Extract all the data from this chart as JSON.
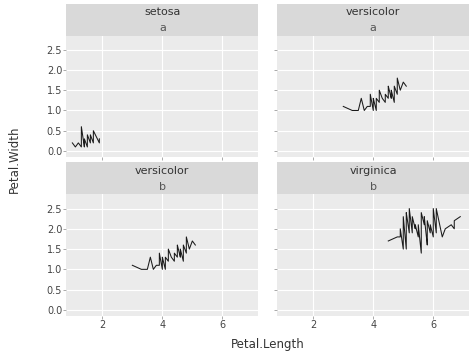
{
  "setosa_pl": [
    1.4,
    1.4,
    1.3,
    1.5,
    1.4,
    1.7,
    1.4,
    1.5,
    1.4,
    1.5,
    1.5,
    1.6,
    1.4,
    1.1,
    1.2,
    1.5,
    1.3,
    1.4,
    1.7,
    1.5,
    1.7,
    1.5,
    1.0,
    1.7,
    1.9,
    1.6,
    1.6,
    1.5,
    1.4,
    1.6,
    1.6,
    1.5,
    1.5,
    1.4,
    1.5,
    1.2,
    1.3,
    1.4,
    1.3,
    1.5,
    1.3,
    1.3,
    1.3,
    1.6,
    1.9,
    1.4,
    1.6,
    1.4,
    1.5,
    1.4
  ],
  "setosa_pw": [
    0.2,
    0.2,
    0.2,
    0.2,
    0.2,
    0.4,
    0.3,
    0.2,
    0.2,
    0.1,
    0.2,
    0.2,
    0.1,
    0.1,
    0.2,
    0.4,
    0.4,
    0.3,
    0.3,
    0.3,
    0.2,
    0.4,
    0.2,
    0.5,
    0.2,
    0.2,
    0.4,
    0.2,
    0.2,
    0.2,
    0.2,
    0.4,
    0.1,
    0.2,
    0.2,
    0.2,
    0.1,
    0.2,
    0.3,
    0.3,
    0.3,
    0.2,
    0.6,
    0.4,
    0.3,
    0.2,
    0.2,
    0.2,
    0.2,
    0.2
  ],
  "versicolor_pl": [
    4.7,
    4.5,
    4.9,
    4.0,
    4.6,
    4.5,
    4.7,
    3.3,
    4.6,
    3.9,
    3.5,
    4.2,
    4.0,
    4.7,
    3.6,
    4.4,
    4.5,
    4.1,
    4.5,
    3.9,
    4.8,
    4.0,
    4.9,
    4.7,
    4.3,
    4.4,
    4.8,
    5.0,
    4.5,
    3.5,
    3.8,
    3.7,
    3.9,
    5.1,
    4.5,
    4.5,
    4.7,
    4.4,
    4.1,
    4.0,
    4.4,
    4.6,
    4.0,
    3.3,
    4.2,
    4.2,
    4.2,
    4.3,
    3.0,
    4.1
  ],
  "versicolor_pw": [
    1.4,
    1.5,
    1.5,
    1.3,
    1.5,
    1.3,
    1.6,
    1.0,
    1.3,
    1.4,
    1.0,
    1.5,
    1.0,
    1.4,
    1.3,
    1.4,
    1.5,
    1.0,
    1.5,
    1.1,
    1.8,
    1.3,
    1.5,
    1.2,
    1.3,
    1.4,
    1.4,
    1.7,
    1.5,
    1.0,
    1.1,
    1.0,
    1.2,
    1.6,
    1.5,
    1.6,
    1.5,
    1.3,
    1.3,
    1.3,
    1.2,
    1.4,
    1.2,
    1.0,
    1.3,
    1.2,
    1.3,
    1.3,
    1.1,
    1.3
  ],
  "virginica_pl": [
    6.0,
    5.1,
    5.9,
    5.6,
    5.8,
    6.6,
    4.5,
    6.3,
    5.8,
    6.1,
    5.1,
    5.3,
    5.5,
    5.0,
    5.1,
    5.3,
    5.5,
    6.7,
    6.9,
    5.0,
    5.7,
    4.9,
    6.7,
    4.9,
    5.7,
    6.0,
    4.8,
    4.9,
    5.6,
    5.8,
    6.1,
    6.4,
    5.6,
    5.1,
    5.6,
    6.1,
    5.6,
    5.5,
    4.8,
    5.4,
    5.6,
    5.1,
    5.9,
    5.7,
    5.2,
    5.0,
    5.2,
    5.4,
    5.1,
    5.1
  ],
  "virginica_pw": [
    2.5,
    1.9,
    2.1,
    1.8,
    2.2,
    2.1,
    1.7,
    1.8,
    1.8,
    2.5,
    2.0,
    1.9,
    2.1,
    2.0,
    2.4,
    2.3,
    1.8,
    2.2,
    2.3,
    1.5,
    2.3,
    2.0,
    2.0,
    1.8,
    2.1,
    1.8,
    1.8,
    1.8,
    2.1,
    1.6,
    1.9,
    2.0,
    2.2,
    1.5,
    1.4,
    2.3,
    2.4,
    1.8,
    1.8,
    2.1,
    2.4,
    2.3,
    1.9,
    2.3,
    2.5,
    2.3,
    1.9,
    2.0,
    2.3,
    1.8
  ],
  "panel_bg": "#d9d9d9",
  "plot_bg": "#ebebeb",
  "grid_color": "#ffffff",
  "line_color": "#1a1a1a",
  "xlabel": "Petal.Length",
  "ylabel": "Petal.Width",
  "panels": [
    {
      "species": "setosa",
      "group": "a",
      "row": 0,
      "col": 0
    },
    {
      "species": "versicolor",
      "group": "a",
      "row": 0,
      "col": 1
    },
    {
      "species": "versicolor",
      "group": "b",
      "row": 1,
      "col": 0
    },
    {
      "species": "virginica",
      "group": "b",
      "row": 1,
      "col": 1
    }
  ],
  "yticks": [
    0.0,
    0.5,
    1.0,
    1.5,
    2.0,
    2.5
  ],
  "xticks": [
    2,
    4,
    6
  ],
  "ylim": [
    -0.15,
    2.85
  ],
  "xlim": [
    0.8,
    7.2
  ]
}
